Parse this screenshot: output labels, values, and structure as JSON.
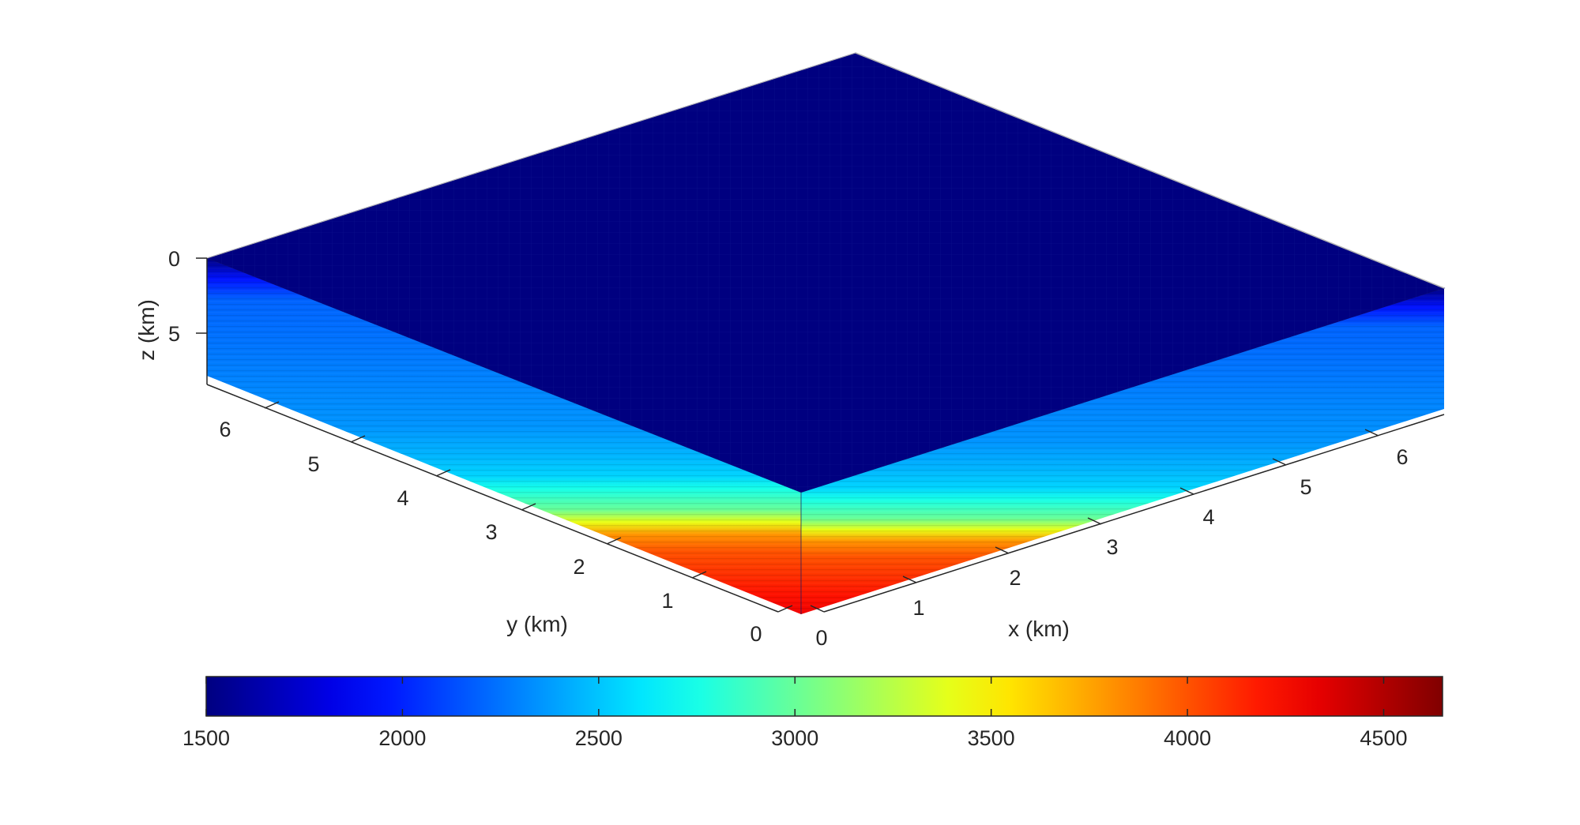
{
  "chart_data": {
    "type": "heatmap",
    "view": "3d-volume-slice",
    "title": "",
    "axes": {
      "x": {
        "label": "x (km)",
        "ticks": [
          "0",
          "1",
          "2",
          "3",
          "4",
          "5",
          "6"
        ],
        "range": [
          0,
          6.8
        ]
      },
      "y": {
        "label": "y (km)",
        "ticks": [
          "0",
          "1",
          "2",
          "3",
          "4",
          "5",
          "6"
        ],
        "range": [
          0,
          6.8
        ]
      },
      "z": {
        "label": "z (km)",
        "ticks": [
          "0",
          "5"
        ],
        "range": [
          0,
          8.5
        ],
        "direction": "reversed"
      }
    },
    "colorbar": {
      "orientation": "horizontal",
      "placement": "bottom",
      "colormap": "jet",
      "ticks": [
        "1500",
        "2000",
        "2500",
        "3000",
        "3500",
        "4000",
        "4500"
      ],
      "range": [
        1500,
        4650
      ]
    },
    "volume": {
      "top_face_value": 1500,
      "depth_profile": [
        {
          "z": 0.0,
          "value": 1500
        },
        {
          "z": 0.5,
          "value": 1950
        },
        {
          "z": 1.0,
          "value": 2200
        },
        {
          "z": 2.0,
          "value": 2250
        },
        {
          "z": 3.0,
          "value": 2300
        },
        {
          "z": 4.0,
          "value": 2350
        },
        {
          "z": 4.7,
          "value": 2450
        },
        {
          "z": 5.2,
          "value": 2550
        },
        {
          "z": 5.5,
          "value": 2750
        },
        {
          "z": 6.0,
          "value": 3000
        },
        {
          "z": 6.3,
          "value": 3400
        },
        {
          "z": 6.6,
          "value": 3800
        },
        {
          "z": 7.0,
          "value": 4000
        },
        {
          "z": 7.5,
          "value": 4100
        },
        {
          "z": 8.0,
          "value": 4200
        },
        {
          "z": 8.5,
          "value": 4300
        }
      ]
    },
    "colors": {
      "jet_stops": [
        "#000080",
        "#0000ff",
        "#00ffff",
        "#ffff00",
        "#ff0000",
        "#800000"
      ],
      "axis_line": "#262626",
      "box_edge": "#b4b4b4"
    }
  }
}
